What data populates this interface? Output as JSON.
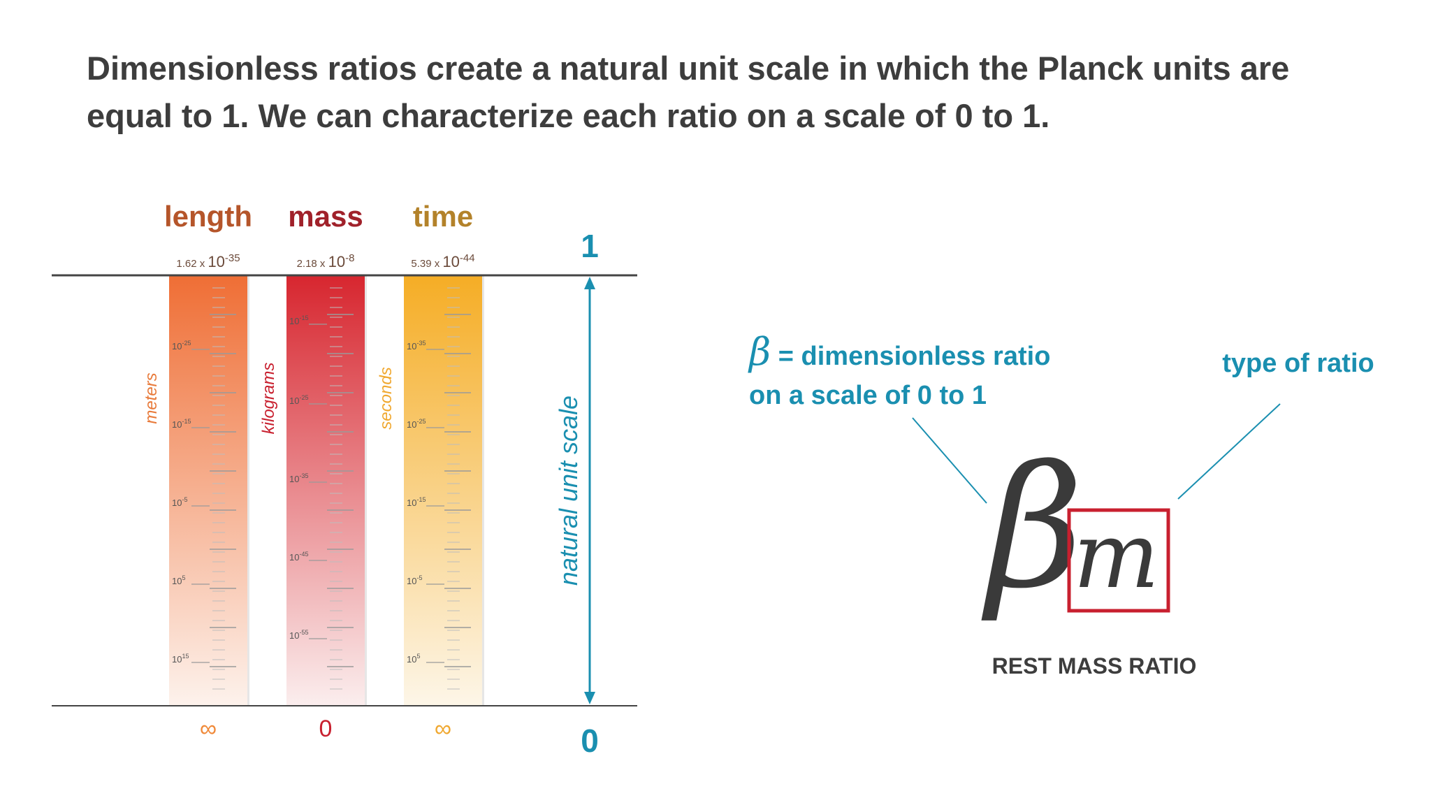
{
  "heading": {
    "line1": "Dimensionless ratios create a natural unit scale in which the Planck units are",
    "line2": "equal to 1. We can characterize each ratio on a scale of 0 to 1."
  },
  "columns": [
    {
      "title": "length",
      "color": "#b5552a",
      "planck_mantissa": "1.62 x ",
      "planck_base": "10",
      "planck_exp": "-35",
      "unit": "meters",
      "unit_color": "#e87a3a",
      "bottom": "∞",
      "bottom_color": "#f08a3a",
      "grad_top": "#ef6e35",
      "grad_bottom": "#fdf2ec",
      "ticks": [
        {
          "base": "10",
          "exp": "-25"
        },
        {
          "base": "10",
          "exp": "-15"
        },
        {
          "base": "10",
          "exp": "-5"
        },
        {
          "base": "10",
          "exp": "5"
        },
        {
          "base": "10",
          "exp": "15"
        }
      ]
    },
    {
      "title": "mass",
      "color": "#a0212a",
      "planck_mantissa": "2.18 x ",
      "planck_base": "10",
      "planck_exp": "-8",
      "unit": "kilograms",
      "unit_color": "#c8202f",
      "bottom": "0",
      "bottom_color": "#c8202f",
      "grad_top": "#d7262f",
      "grad_bottom": "#fbeeee",
      "ticks": [
        {
          "base": "10",
          "exp": "-15"
        },
        {
          "base": "10",
          "exp": "-25"
        },
        {
          "base": "10",
          "exp": "-35"
        },
        {
          "base": "10",
          "exp": "-45"
        },
        {
          "base": "10",
          "exp": "-55"
        }
      ]
    },
    {
      "title": "time",
      "color": "#b3822a",
      "planck_mantissa": "5.39 x ",
      "planck_base": "10",
      "planck_exp": "-44",
      "unit": "seconds",
      "unit_color": "#f0a830",
      "bottom": "∞",
      "bottom_color": "#f0a830",
      "grad_top": "#f5ad25",
      "grad_bottom": "#fdf6e8",
      "ticks": [
        {
          "base": "10",
          "exp": "-35"
        },
        {
          "base": "10",
          "exp": "-25"
        },
        {
          "base": "10",
          "exp": "-15"
        },
        {
          "base": "10",
          "exp": "-5"
        },
        {
          "base": "10",
          "exp": "5"
        }
      ]
    }
  ],
  "scale": {
    "top": "1",
    "bottom": "0",
    "label": "natural unit scale",
    "color": "#1a8fb0"
  },
  "annotation": {
    "beta_symbol": "β",
    "line1_rest": " = dimensionless ratio",
    "line2": "on a scale of 0 to 1",
    "type_label": "type of ratio",
    "color": "#1a8fb0"
  },
  "formula": {
    "symbol": "β",
    "subscript": "m",
    "box_color": "#c8202f",
    "caption": "REST MASS RATIO"
  }
}
